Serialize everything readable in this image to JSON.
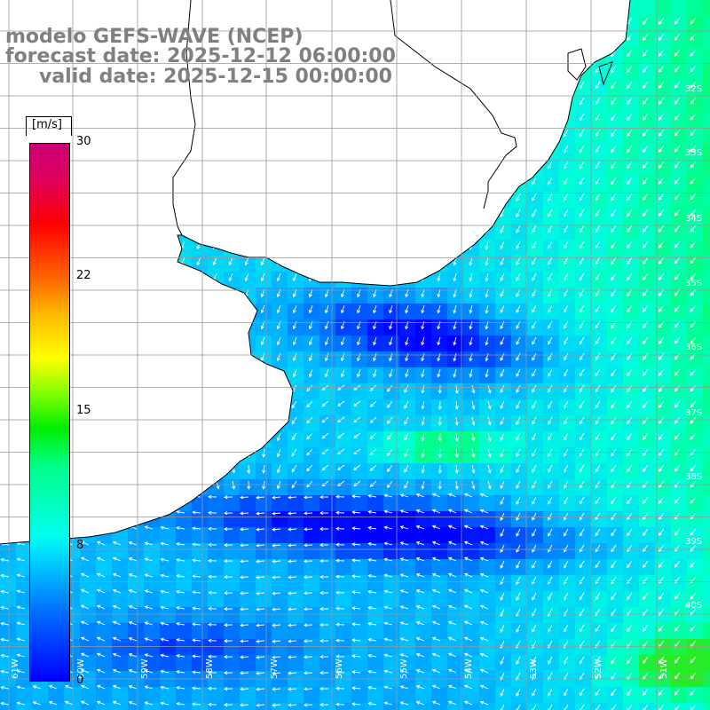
{
  "title": {
    "model": "modelo GEFS-WAVE (NCEP)",
    "forecast": "forecast date: 2025-12-12 06:00:00",
    "valid": "valid date: 2025-12-15 00:00:00"
  },
  "colorbar": {
    "unit": "[m/s]",
    "ticks": [
      {
        "label": "30",
        "value": 30
      },
      {
        "label": "22",
        "value": 22
      },
      {
        "label": "15",
        "value": 15
      },
      {
        "label": "8",
        "value": 8
      },
      {
        "label": "0",
        "value": 0
      }
    ],
    "colors": [
      "#0000ff",
      "#00ccff",
      "#00ff88",
      "#00ee00",
      "#ffff00",
      "#ff6600",
      "#ff0000",
      "#cc0077"
    ]
  },
  "map": {
    "lat_labels": [
      "32S",
      "33S",
      "34S",
      "35S",
      "36S",
      "37S",
      "38S",
      "39S",
      "40S"
    ],
    "lon_labels": [
      "61W",
      "60W",
      "59W",
      "58W",
      "57W",
      "56W",
      "55W",
      "54W",
      "53W",
      "52W",
      "51W"
    ],
    "land_color": "#ffffff",
    "coast_color": "#000000",
    "grid_color": "#999999",
    "arrow_color": "#ffffff"
  }
}
